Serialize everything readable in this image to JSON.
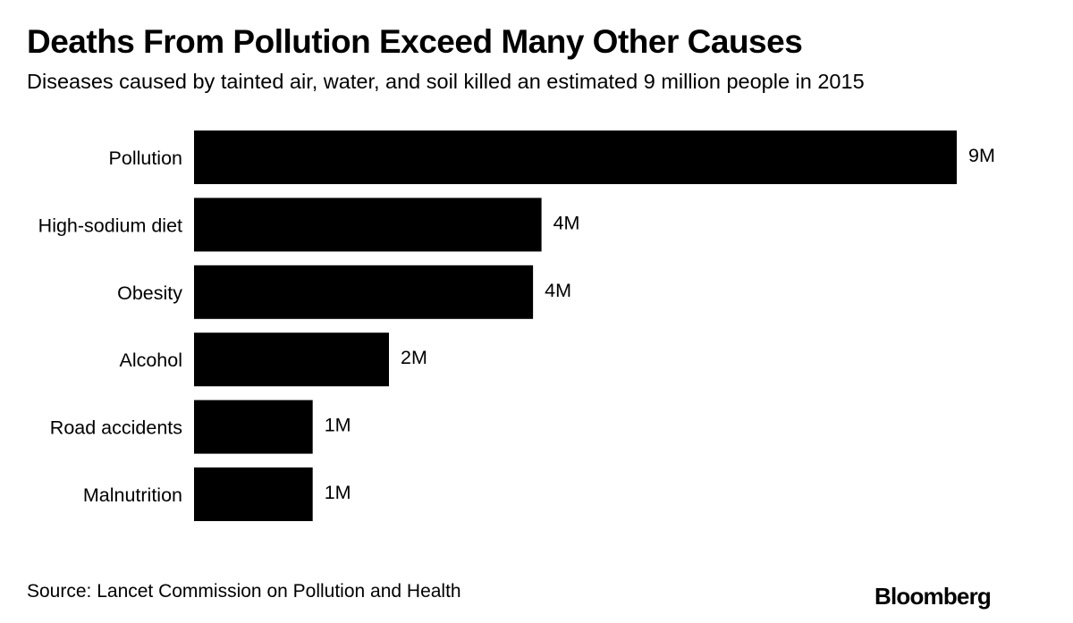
{
  "title": "Deaths From Pollution Exceed Many Other Causes",
  "subtitle": "Diseases caused by tainted air, water, and soil killed an estimated 9 million people in 2015",
  "source": "Source: Lancet Commission on Pollution and Health",
  "logo": "Bloomberg",
  "colors": {
    "bar": "#000000",
    "text": "#000000",
    "background": "#ffffff"
  },
  "chart_data": {
    "type": "bar",
    "orientation": "horizontal",
    "categories": [
      "Pollution",
      "High-sodium diet",
      "Obesity",
      "Alcohol",
      "Road accidents",
      "Malnutrition"
    ],
    "values": [
      9.0,
      4.1,
      4.0,
      2.3,
      1.4,
      1.4
    ],
    "data_labels": [
      "9M",
      "4M",
      "4M",
      "2M",
      "1M",
      "1M"
    ],
    "unit": "million deaths",
    "title": "Deaths From Pollution Exceed Many Other Causes",
    "xlabel": "",
    "ylabel": "",
    "xlim": [
      0,
      9
    ],
    "grid": false,
    "legend": "none"
  }
}
